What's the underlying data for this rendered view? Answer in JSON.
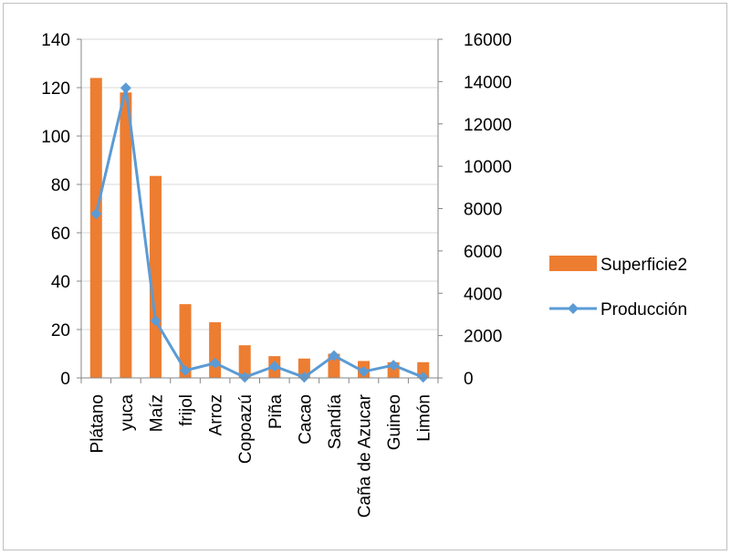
{
  "chart_data": {
    "type": "bar",
    "categories": [
      "Plátano",
      "yuca",
      "Maíz",
      "frijol",
      "Arroz",
      "Copoazú",
      "Piña",
      "Cacao",
      "Sandía",
      "Caña de Azucar",
      "Guineo",
      "Limón"
    ],
    "series": [
      {
        "name": "Superficie2",
        "type": "bar",
        "axis": "left",
        "color": "#ED7D31",
        "values": [
          124,
          118,
          83.5,
          30.5,
          23,
          13.5,
          9,
          8,
          10,
          7,
          6.5,
          6.5
        ]
      },
      {
        "name": "Producción",
        "type": "line",
        "axis": "right",
        "color": "#5B9BD5",
        "marker": "diamond",
        "values": [
          7750,
          13700,
          2700,
          350,
          700,
          30,
          550,
          30,
          1050,
          300,
          600,
          30
        ]
      }
    ],
    "y_left": {
      "ylim": [
        0,
        140
      ],
      "ticks": [
        "0",
        "20",
        "40",
        "60",
        "80",
        "100",
        "120",
        "140"
      ]
    },
    "y_right": {
      "ylim": [
        0,
        16000
      ],
      "ticks": [
        "0",
        "2000",
        "4000",
        "6000",
        "8000",
        "10000",
        "12000",
        "14000",
        "16000"
      ]
    },
    "grid": true,
    "legend": "right"
  }
}
